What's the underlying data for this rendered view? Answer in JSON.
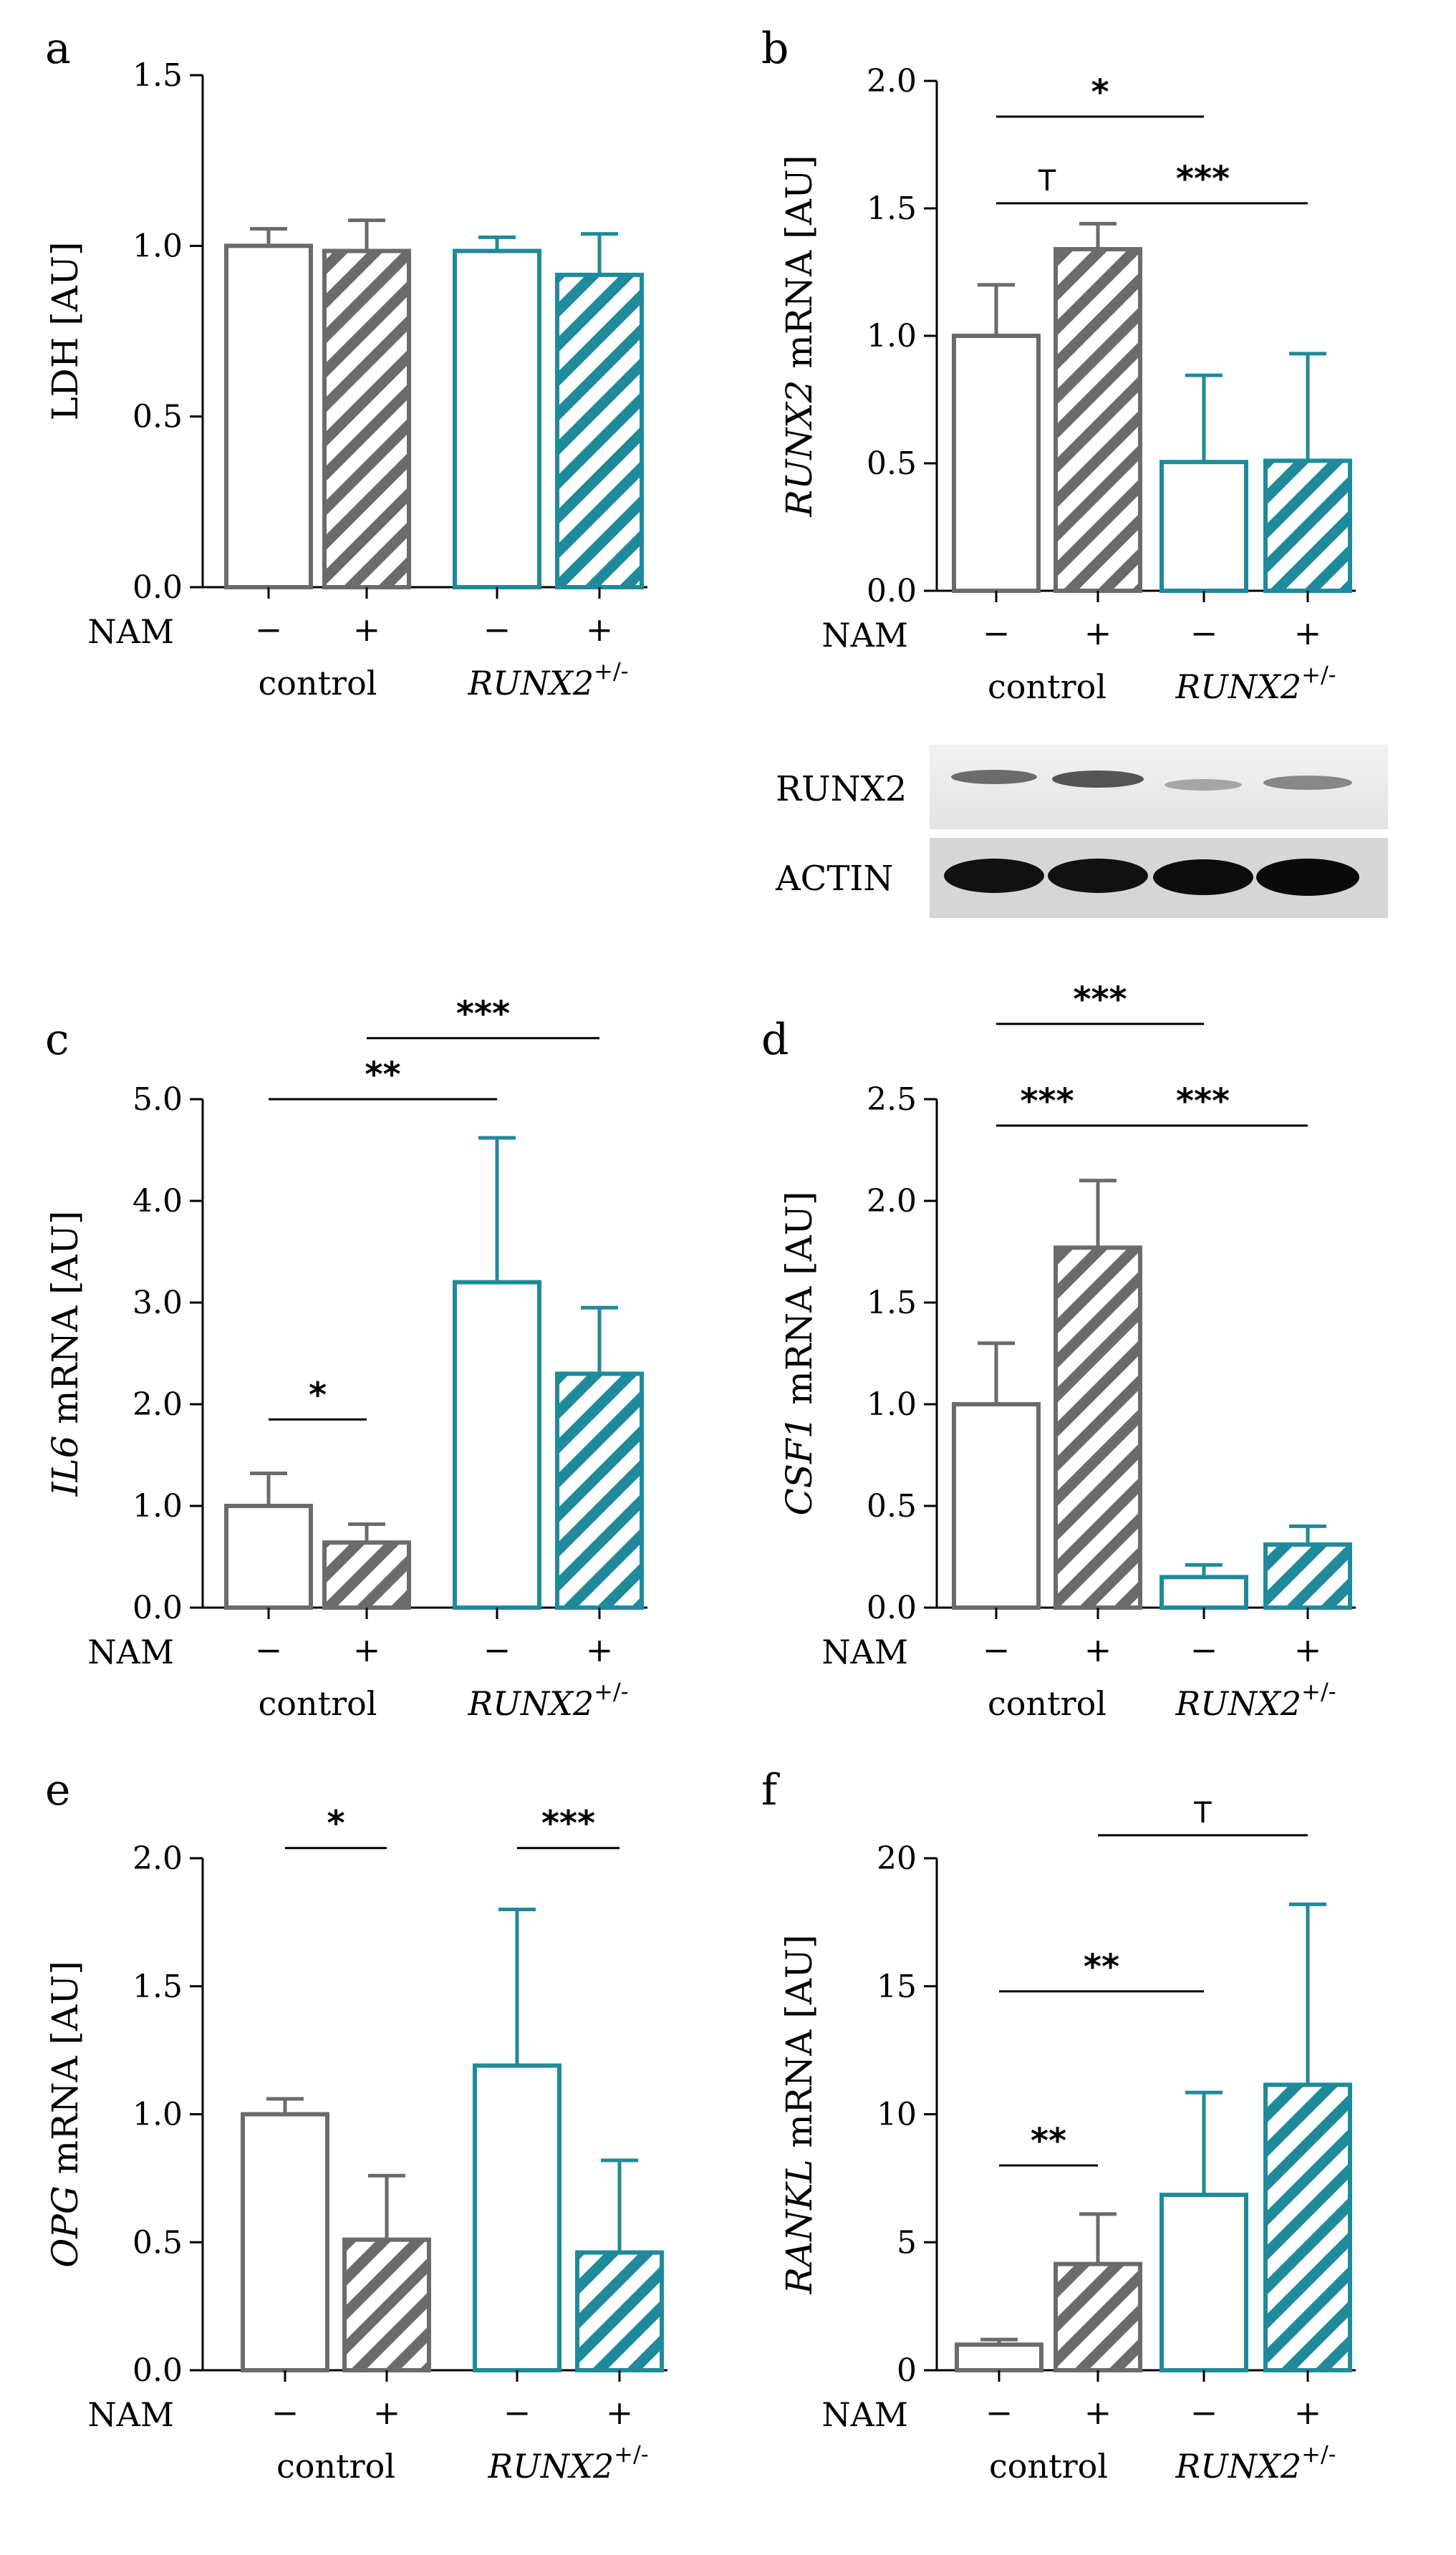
{
  "colors": {
    "control": "#6b6b6b",
    "runx2": "#1f8a9a",
    "axis": "#000000"
  },
  "x_labels": {
    "nam": "NAM",
    "minus": "−",
    "plus": "+",
    "control": "control",
    "runx2_base": "RUNX2",
    "runx2_sup": "+/-"
  },
  "blot": {
    "labels": [
      "RUNX2",
      "ACTIN"
    ]
  },
  "chart_data": [
    {
      "type": "bar",
      "panel": "a",
      "ylabel": {
        "gene": "",
        "rest": "LDH [AU]"
      },
      "ylim": [
        0,
        1.5
      ],
      "yticks": [
        "0.0",
        "0.5",
        "1.0",
        "1.5"
      ],
      "categories": [
        "control −",
        "control +",
        "RUNX2+/- −",
        "RUNX2+/- +"
      ],
      "values": [
        1.0,
        0.985,
        0.985,
        0.915
      ],
      "errors": [
        0.05,
        0.09,
        0.04,
        0.12
      ],
      "significance": []
    },
    {
      "type": "bar",
      "panel": "b",
      "ylabel": {
        "gene": "RUNX2",
        "rest": " mRNA [AU]"
      },
      "ylim": [
        0,
        2.0
      ],
      "yticks": [
        "0.0",
        "0.5",
        "1.0",
        "1.5",
        "2.0"
      ],
      "categories": [
        "control −",
        "control +",
        "RUNX2+/- −",
        "RUNX2+/- +"
      ],
      "values": [
        1.0,
        1.34,
        0.505,
        0.51
      ],
      "errors": [
        0.2,
        0.1,
        0.34,
        0.42
      ],
      "significance": [
        {
          "from": 0,
          "to": 2,
          "label": "*",
          "y": 1.86
        },
        {
          "from": 0,
          "to": 1,
          "label": "T",
          "y": 1.52
        },
        {
          "from": 1,
          "to": 3,
          "label": "***",
          "y": 1.52
        }
      ]
    },
    {
      "type": "bar",
      "panel": "c",
      "ylabel": {
        "gene": "IL6",
        "rest": " mRNA [AU]"
      },
      "ylim": [
        0,
        5.0
      ],
      "yticks": [
        "0.0",
        "1.0",
        "2.0",
        "3.0",
        "4.0",
        "5.0"
      ],
      "categories": [
        "control −",
        "control +",
        "RUNX2+/- −",
        "RUNX2+/- +"
      ],
      "values": [
        1.0,
        0.64,
        3.2,
        2.3
      ],
      "errors": [
        0.32,
        0.18,
        1.42,
        0.65
      ],
      "significance": [
        {
          "from": 1,
          "to": 3,
          "label": "***",
          "y": 5.6
        },
        {
          "from": 0,
          "to": 2,
          "label": "**",
          "y": 5.0
        },
        {
          "from": 0,
          "to": 1,
          "label": "*",
          "y": 1.85
        }
      ]
    },
    {
      "type": "bar",
      "panel": "d",
      "ylabel": {
        "gene": "CSF1",
        "rest": " mRNA [AU]"
      },
      "ylim": [
        0,
        2.5
      ],
      "yticks": [
        "0.0",
        "0.5",
        "1.0",
        "1.5",
        "2.0",
        "2.5"
      ],
      "categories": [
        "control −",
        "control +",
        "RUNX2+/- −",
        "RUNX2+/- +"
      ],
      "values": [
        1.0,
        1.77,
        0.15,
        0.31
      ],
      "errors": [
        0.3,
        0.33,
        0.06,
        0.09
      ],
      "significance": [
        {
          "from": 0,
          "to": 2,
          "label": "***",
          "y": 2.87
        },
        {
          "from": 0,
          "to": 1,
          "label": "***",
          "y": 2.37
        },
        {
          "from": 1,
          "to": 3,
          "label": "***",
          "y": 2.37
        }
      ]
    },
    {
      "type": "bar",
      "panel": "e",
      "ylabel": {
        "gene": "OPG",
        "rest": " mRNA [AU]"
      },
      "ylim": [
        0,
        2.0
      ],
      "yticks": [
        "0.0",
        "0.5",
        "1.0",
        "1.5",
        "2.0"
      ],
      "categories": [
        "control −",
        "control +",
        "RUNX2+/- −",
        "RUNX2+/- +"
      ],
      "values": [
        1.0,
        0.51,
        1.19,
        0.46
      ],
      "errors": [
        0.06,
        0.25,
        0.61,
        0.36
      ],
      "significance": [
        {
          "from": 0,
          "to": 1,
          "label": "*",
          "y": 2.04
        },
        {
          "from": 2,
          "to": 3,
          "label": "***",
          "y": 2.04
        }
      ]
    },
    {
      "type": "bar",
      "panel": "f",
      "ylabel": {
        "gene": "RANKL",
        "rest": " mRNA [AU]"
      },
      "ylim": [
        0,
        20
      ],
      "yticks": [
        "0",
        "5",
        "10",
        "15",
        "20"
      ],
      "categories": [
        "control −",
        "control +",
        "RUNX2+/- −",
        "RUNX2+/- +"
      ],
      "values": [
        1.0,
        4.15,
        6.85,
        11.15
      ],
      "errors": [
        0.2,
        1.95,
        4.0,
        7.05
      ],
      "significance": [
        {
          "from": 1,
          "to": 3,
          "label": "T",
          "y": 20.9
        },
        {
          "from": 0,
          "to": 2,
          "label": "**",
          "y": 14.8
        },
        {
          "from": 0,
          "to": 1,
          "label": "**",
          "y": 8.0
        }
      ]
    }
  ]
}
